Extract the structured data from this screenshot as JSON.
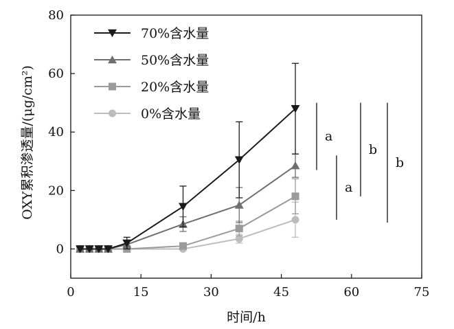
{
  "chart_data": {
    "type": "line",
    "xlabel": "时间/h",
    "ylabel": "OXY累积渗透量/(μg/cm²)",
    "xlim": [
      0,
      75
    ],
    "ylim": [
      -10,
      80
    ],
    "xticks": [
      0,
      15,
      30,
      45,
      60,
      75
    ],
    "yticks": [
      0,
      20,
      40,
      60,
      80
    ],
    "x_tick_labels": [
      "0",
      "15",
      "30",
      "45",
      "60",
      "75"
    ],
    "y_tick_labels": [
      "0",
      "20",
      "40",
      "60",
      "80"
    ],
    "legend_position": "top-left",
    "grid": false,
    "x": [
      2,
      4,
      6,
      8,
      12,
      24,
      36,
      48
    ],
    "series": [
      {
        "name": "70%含水量",
        "marker": "triangle-down",
        "color": "#1a1a1a",
        "values": [
          0,
          0,
          0,
          0,
          2,
          14.5,
          30.5,
          48
        ],
        "errors": [
          0,
          0,
          0,
          0,
          2,
          7,
          13,
          15.5
        ]
      },
      {
        "name": "50%含水量",
        "marker": "triangle-up",
        "color": "#6e6e6e",
        "values": [
          0,
          0,
          0,
          0,
          1.5,
          8.5,
          15,
          28.5
        ],
        "errors": [
          0,
          0,
          0,
          0,
          1.5,
          2.5,
          6,
          4
        ]
      },
      {
        "name": "20%含水量",
        "marker": "square",
        "color": "#9a9a9a",
        "values": [
          0,
          0,
          0,
          0,
          0,
          1,
          7,
          18
        ],
        "errors": [
          0,
          0,
          0,
          0,
          0.5,
          0.5,
          2.5,
          6
        ]
      },
      {
        "name": "0%含水量",
        "marker": "circle",
        "color": "#bcbcbc",
        "values": [
          0,
          0,
          0,
          0,
          0,
          0,
          3.5,
          10
        ],
        "errors": [
          0,
          0,
          0,
          0,
          0,
          0.5,
          1.5,
          6
        ]
      }
    ],
    "significance": [
      {
        "label": "a",
        "y_range": [
          27,
          50
        ]
      },
      {
        "label": "a",
        "y_range": [
          10,
          32
        ]
      },
      {
        "label": "b",
        "y_range": [
          18,
          50
        ]
      },
      {
        "label": "b",
        "y_range": [
          9,
          50
        ]
      }
    ]
  }
}
